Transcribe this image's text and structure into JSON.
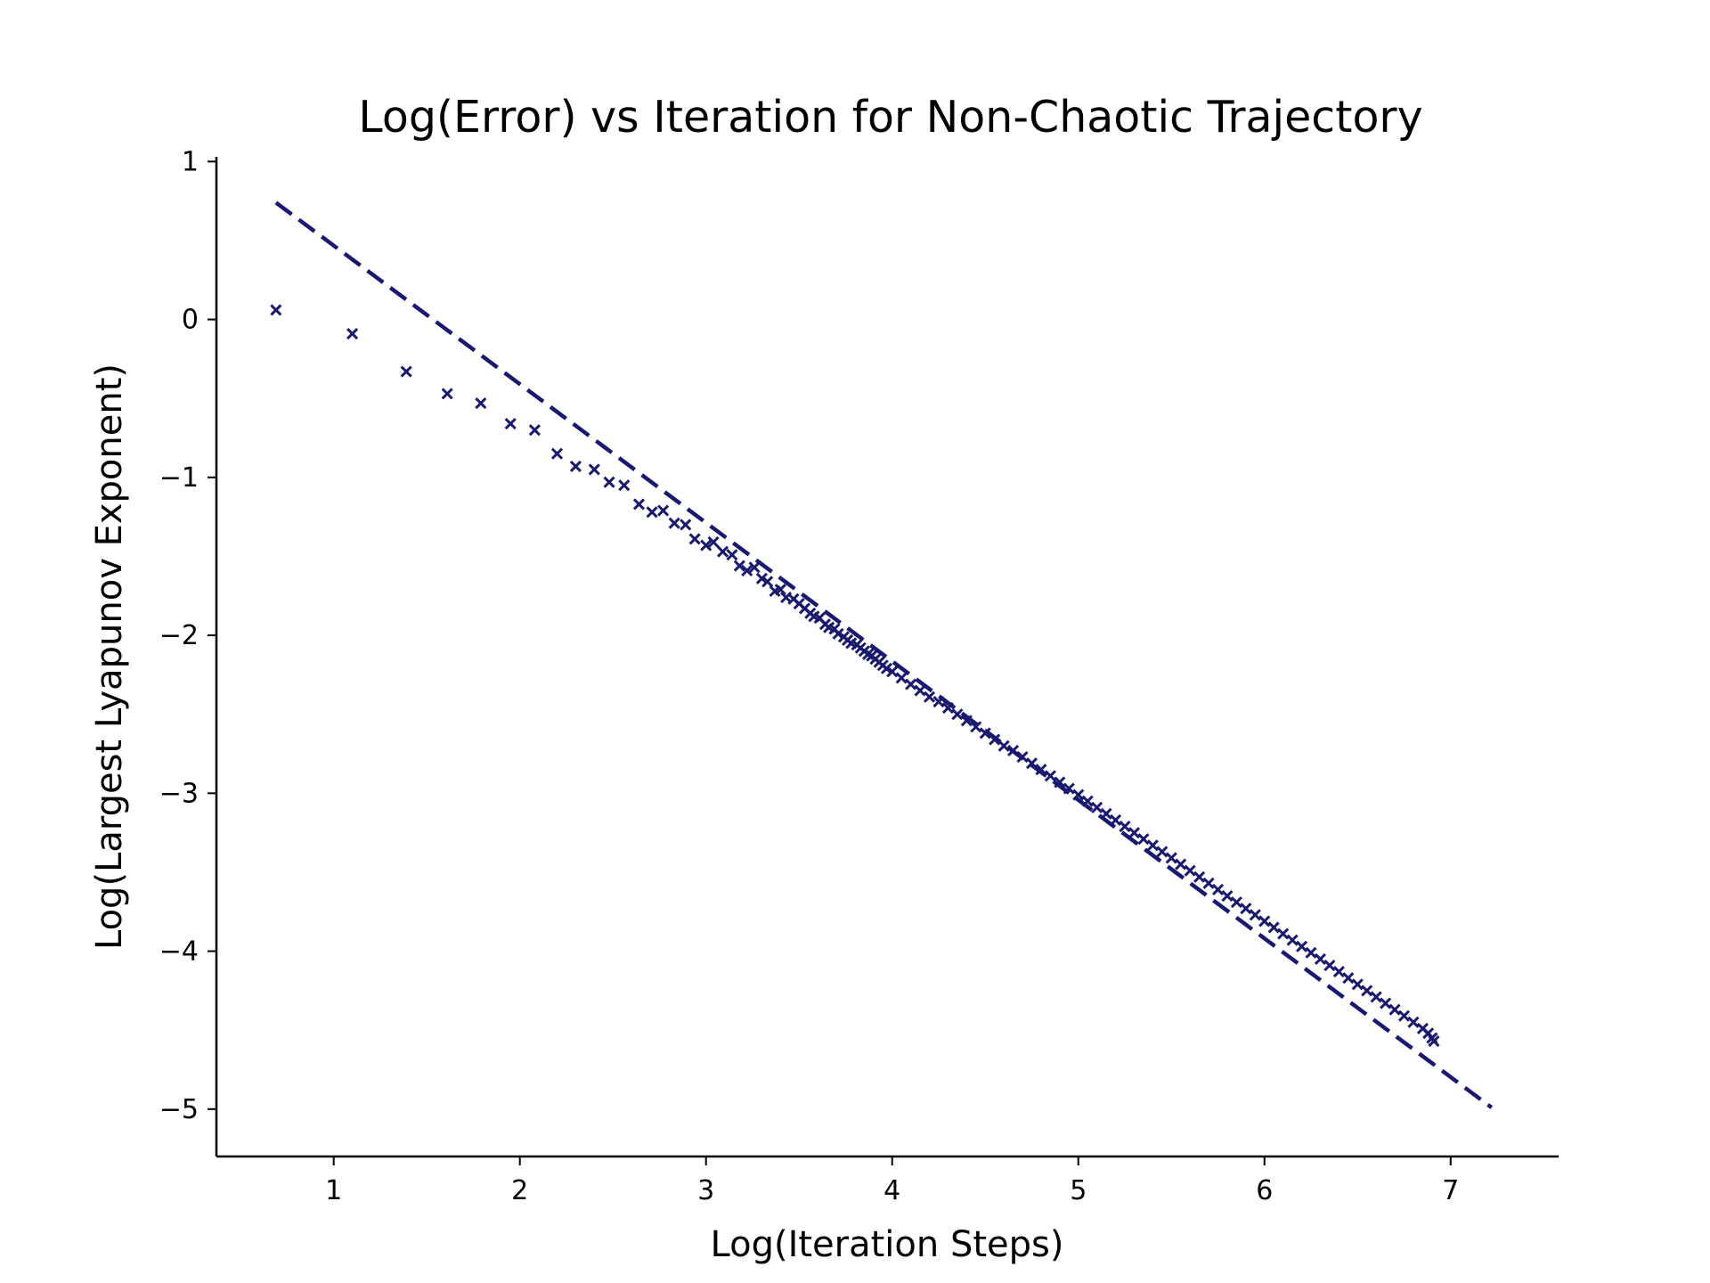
{
  "chart_data": {
    "type": "scatter",
    "title": "Log(Error) vs Iteration for Non-Chaotic Trajectory",
    "xlabel": "Log(Iteration Steps)",
    "ylabel": "Log(Largest Lyapunov Exponent)",
    "xlim": [
      0.37,
      7.58
    ],
    "ylim": [
      -5.3,
      1.03
    ],
    "x_ticks": [
      {
        "value": 1,
        "label": "1"
      },
      {
        "value": 2,
        "label": "2"
      },
      {
        "value": 3,
        "label": "3"
      },
      {
        "value": 4,
        "label": "4"
      },
      {
        "value": 5,
        "label": "5"
      },
      {
        "value": 6,
        "label": "6"
      },
      {
        "value": 7,
        "label": "7"
      }
    ],
    "y_ticks": [
      {
        "value": 1,
        "label": "1"
      },
      {
        "value": 0,
        "label": "0"
      },
      {
        "value": -1,
        "label": "−1"
      },
      {
        "value": -2,
        "label": "−2"
      },
      {
        "value": -3,
        "label": "−3"
      },
      {
        "value": -4,
        "label": "−4"
      },
      {
        "value": -5,
        "label": "−5"
      }
    ],
    "grid": false,
    "colors": {
      "series": "#191970",
      "axis": "#000000"
    },
    "series": [
      {
        "kind": "scatter",
        "marker": "x",
        "points": [
          [
            0.69,
            0.06
          ],
          [
            1.1,
            -0.09
          ],
          [
            1.39,
            -0.33
          ],
          [
            1.61,
            -0.47
          ],
          [
            1.79,
            -0.53
          ],
          [
            1.95,
            -0.66
          ],
          [
            2.08,
            -0.7
          ],
          [
            2.2,
            -0.85
          ],
          [
            2.3,
            -0.93
          ],
          [
            2.4,
            -0.95
          ],
          [
            2.48,
            -1.03
          ],
          [
            2.56,
            -1.05
          ],
          [
            2.64,
            -1.17
          ],
          [
            2.71,
            -1.22
          ],
          [
            2.77,
            -1.21
          ],
          [
            2.83,
            -1.29
          ],
          [
            2.89,
            -1.3
          ],
          [
            2.94,
            -1.39
          ],
          [
            3.0,
            -1.43
          ],
          [
            3.04,
            -1.41
          ],
          [
            3.09,
            -1.47
          ],
          [
            3.14,
            -1.49
          ],
          [
            3.18,
            -1.56
          ],
          [
            3.22,
            -1.59
          ],
          [
            3.26,
            -1.57
          ],
          [
            3.3,
            -1.64
          ],
          [
            3.33,
            -1.66
          ],
          [
            3.37,
            -1.72
          ],
          [
            3.4,
            -1.71
          ],
          [
            3.43,
            -1.76
          ],
          [
            3.47,
            -1.77
          ],
          [
            3.5,
            -1.8
          ],
          [
            3.53,
            -1.83
          ],
          [
            3.56,
            -1.86
          ],
          [
            3.58,
            -1.88
          ],
          [
            3.61,
            -1.89
          ],
          [
            3.64,
            -1.93
          ],
          [
            3.66,
            -1.95
          ],
          [
            3.69,
            -1.96
          ],
          [
            3.71,
            -1.99
          ],
          [
            3.74,
            -2.01
          ],
          [
            3.76,
            -2.03
          ],
          [
            3.78,
            -2.05
          ],
          [
            3.81,
            -2.06
          ],
          [
            3.83,
            -2.08
          ],
          [
            3.85,
            -2.1
          ],
          [
            3.87,
            -2.12
          ],
          [
            3.89,
            -2.13
          ],
          [
            3.91,
            -2.15
          ],
          [
            3.93,
            -2.17
          ],
          [
            3.95,
            -2.19
          ],
          [
            3.97,
            -2.21
          ],
          [
            4.0,
            -2.23
          ],
          [
            4.05,
            -2.27
          ],
          [
            4.1,
            -2.31
          ],
          [
            4.15,
            -2.35
          ],
          [
            4.2,
            -2.39
          ],
          [
            4.25,
            -2.42
          ],
          [
            4.3,
            -2.46
          ],
          [
            4.35,
            -2.5
          ],
          [
            4.4,
            -2.54
          ],
          [
            4.45,
            -2.58
          ],
          [
            4.5,
            -2.62
          ],
          [
            4.55,
            -2.66
          ],
          [
            4.6,
            -2.7
          ],
          [
            4.65,
            -2.73
          ],
          [
            4.7,
            -2.77
          ],
          [
            4.75,
            -2.81
          ],
          [
            4.8,
            -2.85
          ],
          [
            4.85,
            -2.89
          ],
          [
            4.9,
            -2.93
          ],
          [
            4.95,
            -2.97
          ],
          [
            5.0,
            -3.01
          ],
          [
            5.05,
            -3.05
          ],
          [
            5.1,
            -3.09
          ],
          [
            5.15,
            -3.13
          ],
          [
            5.2,
            -3.17
          ],
          [
            5.25,
            -3.21
          ],
          [
            5.3,
            -3.25
          ],
          [
            5.35,
            -3.29
          ],
          [
            5.4,
            -3.33
          ],
          [
            5.45,
            -3.37
          ],
          [
            5.5,
            -3.41
          ],
          [
            5.55,
            -3.45
          ],
          [
            5.6,
            -3.49
          ],
          [
            5.65,
            -3.53
          ],
          [
            5.7,
            -3.57
          ],
          [
            5.75,
            -3.61
          ],
          [
            5.8,
            -3.65
          ],
          [
            5.85,
            -3.69
          ],
          [
            5.9,
            -3.73
          ],
          [
            5.95,
            -3.77
          ],
          [
            6.0,
            -3.81
          ],
          [
            6.05,
            -3.85
          ],
          [
            6.1,
            -3.89
          ],
          [
            6.15,
            -3.93
          ],
          [
            6.2,
            -3.97
          ],
          [
            6.25,
            -4.01
          ],
          [
            6.3,
            -4.05
          ],
          [
            6.35,
            -4.09
          ],
          [
            6.4,
            -4.13
          ],
          [
            6.45,
            -4.17
          ],
          [
            6.5,
            -4.21
          ],
          [
            6.55,
            -4.25
          ],
          [
            6.6,
            -4.29
          ],
          [
            6.65,
            -4.33
          ],
          [
            6.7,
            -4.37
          ],
          [
            6.75,
            -4.41
          ],
          [
            6.8,
            -4.45
          ],
          [
            6.85,
            -4.49
          ],
          [
            6.88,
            -4.52
          ],
          [
            6.9,
            -4.55
          ],
          [
            6.91,
            -4.57
          ]
        ]
      },
      {
        "kind": "line",
        "style": "dashed",
        "points": [
          [
            0.69,
            0.74
          ],
          [
            7.22,
            -4.99
          ]
        ]
      }
    ]
  }
}
